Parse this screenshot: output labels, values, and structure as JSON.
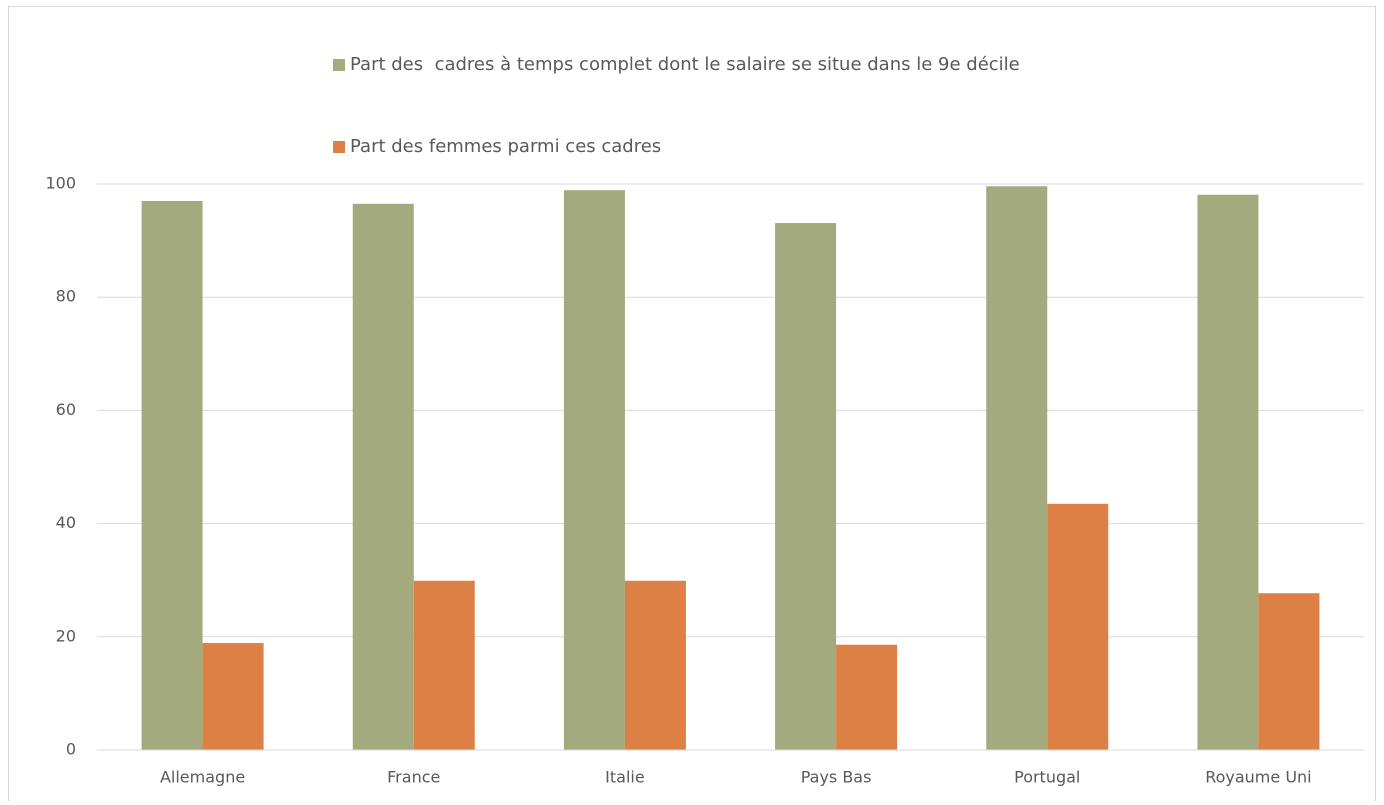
{
  "chart_data": {
    "type": "bar",
    "categories": [
      "Allemagne",
      "France",
      "Italie",
      "Pays Bas",
      "Portugal",
      "Royaume Uni"
    ],
    "series": [
      {
        "name": "Part des  cadres à temps complet dont le salaire se situe dans le 9e décile",
        "color": "#a3aa7e",
        "values": [
          97.0,
          96.5,
          98.9,
          93.1,
          99.6,
          98.1
        ]
      },
      {
        "name": "Part des femmes parmi ces cadres",
        "color": "#dd8046",
        "values": [
          18.9,
          29.9,
          29.9,
          18.6,
          43.5,
          27.7
        ]
      }
    ],
    "ylim": [
      0,
      100
    ],
    "yticks": [
      0,
      20,
      40,
      60,
      80,
      100
    ],
    "grid": true
  }
}
